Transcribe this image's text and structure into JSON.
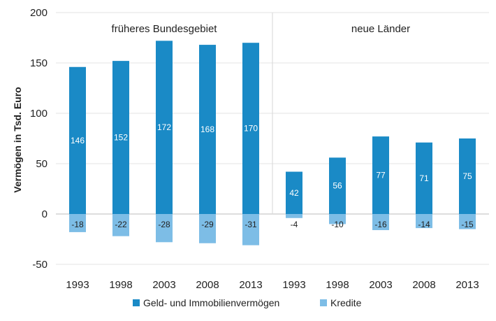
{
  "chart_data": {
    "type": "bar",
    "ylabel": "Vermögen in Tsd. Euro",
    "ylim": [
      -50,
      200
    ],
    "yticks": [
      -50,
      0,
      50,
      100,
      150,
      200
    ],
    "grid": "horizontal",
    "legend_position": "bottom",
    "groups": [
      {
        "name": "früheres Bundesgebiet",
        "categories": [
          "1993",
          "1998",
          "2003",
          "2008",
          "2013"
        ]
      },
      {
        "name": "neue Länder",
        "categories": [
          "1993",
          "1998",
          "2003",
          "2008",
          "2013"
        ]
      }
    ],
    "categories": [
      "1993",
      "1998",
      "2003",
      "2008",
      "2013",
      "1993",
      "1998",
      "2003",
      "2008",
      "2013"
    ],
    "series": [
      {
        "name": "Geld- und Immobilienvermögen",
        "color": "#1a8ac6",
        "values": [
          146,
          152,
          172,
          168,
          170,
          42,
          56,
          77,
          71,
          75
        ]
      },
      {
        "name": "Kredite",
        "color": "#7dbde6",
        "values": [
          -18,
          -22,
          -28,
          -29,
          -31,
          -4,
          -10,
          -16,
          -14,
          -15
        ]
      }
    ]
  }
}
